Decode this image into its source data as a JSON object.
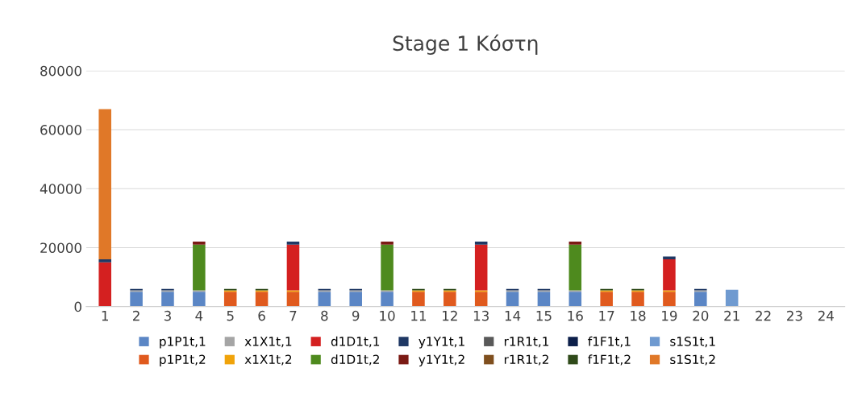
{
  "chart_data": {
    "type": "bar",
    "stacked": true,
    "title": "Stage 1 Κόστη",
    "categories": [
      "1",
      "2",
      "3",
      "4",
      "5",
      "6",
      "7",
      "8",
      "9",
      "10",
      "11",
      "12",
      "13",
      "14",
      "15",
      "16",
      "17",
      "18",
      "19",
      "20",
      "21",
      "22",
      "23",
      "24"
    ],
    "ylim": [
      0,
      80000
    ],
    "yticks": [
      0,
      20000,
      40000,
      60000,
      80000
    ],
    "grid": "y",
    "legend": "bottom",
    "series": [
      {
        "name": "p1P1t,1",
        "color": "#5b86c5",
        "values": [
          0,
          5000,
          5000,
          5000,
          0,
          0,
          0,
          5000,
          5000,
          5000,
          0,
          0,
          0,
          5000,
          5000,
          5000,
          0,
          0,
          0,
          5000,
          0,
          0,
          0,
          0
        ]
      },
      {
        "name": "p1P1t,2",
        "color": "#e05a1e",
        "values": [
          0,
          0,
          0,
          0,
          5000,
          5000,
          5000,
          0,
          0,
          0,
          5000,
          5000,
          5000,
          0,
          0,
          0,
          5000,
          5000,
          5000,
          0,
          0,
          0,
          0,
          0
        ]
      },
      {
        "name": "x1X1t,1",
        "color": "#a5a5a5",
        "values": [
          0,
          500,
          500,
          500,
          0,
          0,
          0,
          500,
          500,
          500,
          0,
          0,
          0,
          500,
          500,
          500,
          0,
          0,
          0,
          500,
          0,
          0,
          0,
          0
        ]
      },
      {
        "name": "x1X1t,2",
        "color": "#f0a30a",
        "values": [
          0,
          0,
          0,
          0,
          500,
          500,
          500,
          0,
          0,
          0,
          500,
          500,
          500,
          0,
          0,
          0,
          500,
          500,
          500,
          0,
          0,
          0,
          0,
          0
        ]
      },
      {
        "name": "d1D1t,1",
        "color": "#d42020",
        "values": [
          15000,
          0,
          0,
          0,
          0,
          0,
          15500,
          0,
          0,
          0,
          0,
          0,
          15500,
          0,
          0,
          0,
          0,
          0,
          10500,
          0,
          0,
          0,
          0,
          0
        ]
      },
      {
        "name": "d1D1t,2",
        "color": "#4e8a1e",
        "values": [
          0,
          0,
          0,
          15500,
          0,
          0,
          0,
          0,
          0,
          15500,
          0,
          0,
          0,
          0,
          0,
          15500,
          0,
          0,
          0,
          0,
          0,
          0,
          0,
          0
        ]
      },
      {
        "name": "y1Y1t,1",
        "color": "#1f3864",
        "values": [
          1000,
          500,
          500,
          0,
          0,
          0,
          1000,
          500,
          500,
          0,
          0,
          0,
          1000,
          500,
          500,
          0,
          0,
          0,
          1000,
          500,
          0,
          0,
          0,
          0
        ]
      },
      {
        "name": "y1Y1t,2",
        "color": "#7b1a14",
        "values": [
          0,
          0,
          0,
          1000,
          0,
          0,
          0,
          0,
          0,
          1000,
          0,
          0,
          0,
          0,
          0,
          1000,
          0,
          0,
          0,
          0,
          0,
          0,
          0,
          0
        ]
      },
      {
        "name": "r1R1t,1",
        "color": "#595959",
        "values": [
          0,
          0,
          0,
          0,
          0,
          0,
          0,
          0,
          0,
          0,
          0,
          0,
          0,
          0,
          0,
          0,
          0,
          0,
          0,
          0,
          0,
          0,
          0,
          0
        ]
      },
      {
        "name": "r1R1t,2",
        "color": "#7f4f1e",
        "values": [
          0,
          0,
          0,
          0,
          0,
          0,
          0,
          0,
          0,
          0,
          0,
          0,
          0,
          0,
          0,
          0,
          0,
          0,
          0,
          0,
          0,
          0,
          0,
          0
        ]
      },
      {
        "name": "f1F1t,1",
        "color": "#0c1f4a",
        "values": [
          0,
          0,
          0,
          0,
          0,
          0,
          0,
          0,
          0,
          0,
          0,
          0,
          0,
          0,
          0,
          0,
          0,
          0,
          0,
          0,
          0,
          0,
          0,
          0
        ]
      },
      {
        "name": "f1F1t,2",
        "color": "#2f4a1a",
        "values": [
          0,
          0,
          0,
          0,
          500,
          500,
          0,
          0,
          0,
          0,
          500,
          500,
          0,
          0,
          0,
          0,
          500,
          500,
          0,
          0,
          0,
          0,
          0,
          0
        ]
      },
      {
        "name": "s1S1t,1",
        "color": "#6f9ad0",
        "values": [
          0,
          0,
          0,
          0,
          0,
          0,
          0,
          0,
          0,
          0,
          0,
          0,
          0,
          0,
          0,
          0,
          0,
          0,
          0,
          0,
          5700,
          0,
          0,
          0
        ]
      },
      {
        "name": "s1S1t,2",
        "color": "#e07828",
        "values": [
          51000,
          0,
          0,
          0,
          0,
          0,
          0,
          0,
          0,
          0,
          0,
          0,
          0,
          0,
          0,
          0,
          0,
          0,
          0,
          0,
          0,
          0,
          0,
          0
        ]
      }
    ]
  }
}
